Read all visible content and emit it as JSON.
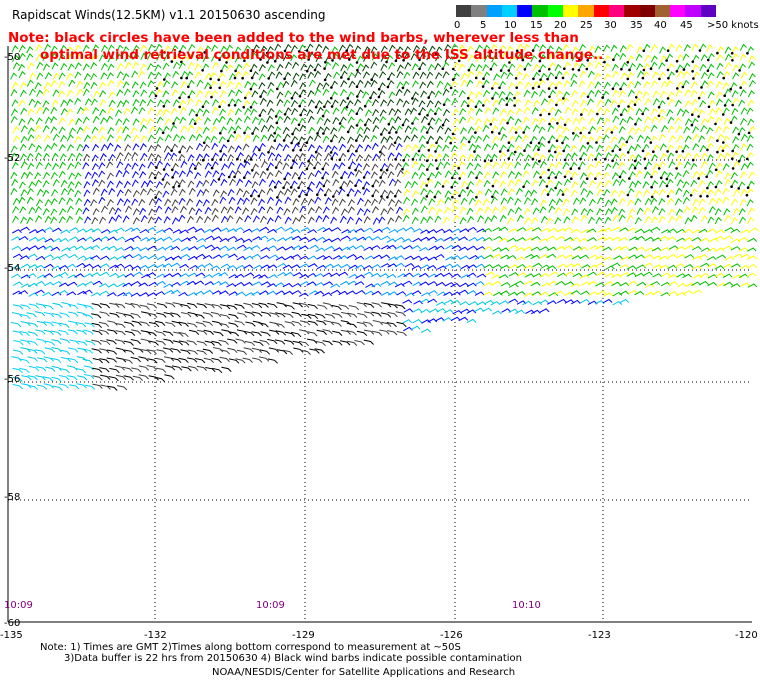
{
  "header": {
    "title": "Rapidscat Winds(12.5KM) v1.1 20150630 ascending"
  },
  "legend": {
    "labels": [
      "0",
      "5",
      "10",
      "15",
      "20",
      "25",
      "30",
      "35",
      "40",
      "45",
      ">50 knots"
    ],
    "colors": [
      "#404040",
      "#808080",
      "#00a0ff",
      "#00d0ff",
      "#0000ff",
      "#00c000",
      "#00ff00",
      "#ffff00",
      "#ffa500",
      "#ff0000",
      "#ff0080",
      "#a00000",
      "#800000",
      "#a06030",
      "#ff00ff",
      "#c000ff",
      "#6000c0"
    ]
  },
  "note": {
    "line1": "Note: black circles have been added to the wind barbs, wherever less than",
    "line2": "optimal wind retrieval conditions are met due to the ISS altitude change.."
  },
  "map": {
    "lat_labels": [
      "-50",
      "-52",
      "-54",
      "-56",
      "-58",
      "-60"
    ],
    "lon_labels": [
      "-135",
      "-132",
      "-129",
      "-126",
      "-123",
      "-120"
    ],
    "time_labels": [
      "10:09",
      "10:09",
      "10:10"
    ]
  },
  "footer": {
    "line1": "Note: 1) Times are GMT 2)Times along bottom correspond to measurement at ~50S",
    "line2": "3)Data buffer is 22 hrs from 20150630 4) Black wind barbs indicate possible contamination",
    "line3": "NOAA/NESDIS/Center for Satellite Applications and Research"
  }
}
